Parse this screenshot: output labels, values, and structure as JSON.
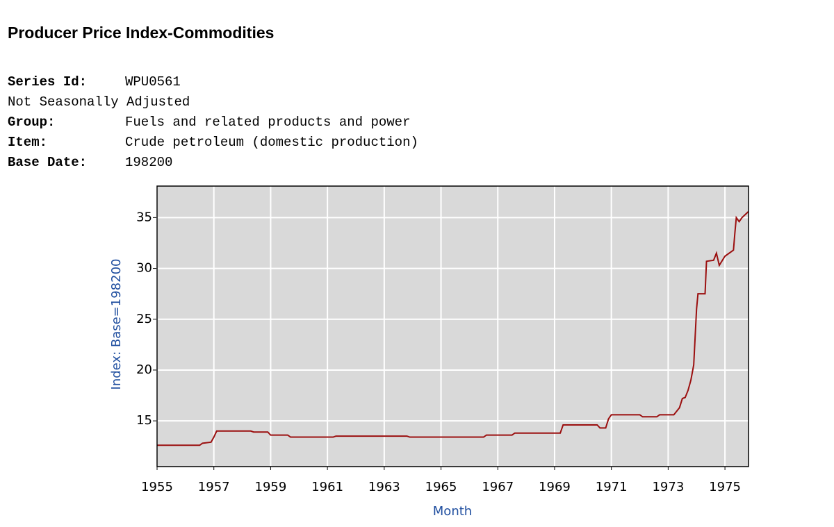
{
  "header": {
    "title": "Producer Price Index-Commodities",
    "series_id": {
      "label": "Series Id:",
      "value": "WPU0561"
    },
    "adjustment": "Not Seasonally Adjusted",
    "fields": [
      {
        "label": "Group:",
        "value": "Fuels and related products and power"
      },
      {
        "label": "Item:",
        "value": "Crude petroleum (domestic production)"
      },
      {
        "label": "Base Date:",
        "value": "198200"
      }
    ]
  },
  "chart_data": {
    "type": "line",
    "xlabel": "Month",
    "ylabel": "Index: Base=198200",
    "color": "#9b0f0f",
    "grid": true,
    "x": [
      1955.0,
      1956.5,
      1956.6,
      1956.9,
      1957.0,
      1957.1,
      1958.3,
      1958.4,
      1958.9,
      1959.0,
      1959.6,
      1959.7,
      1961.2,
      1961.3,
      1963.8,
      1963.9,
      1966.5,
      1966.6,
      1967.5,
      1967.6,
      1969.2,
      1969.3,
      1970.5,
      1970.6,
      1970.8,
      1970.9,
      1971.0,
      1972.0,
      1972.1,
      1972.6,
      1972.7,
      1973.2,
      1973.4,
      1973.5,
      1973.6,
      1973.7,
      1973.8,
      1973.9,
      1974.0,
      1974.05,
      1974.3,
      1974.35,
      1974.6,
      1974.7,
      1974.8,
      1975.0,
      1975.3,
      1975.35,
      1975.4,
      1975.5,
      1975.6,
      1975.83
    ],
    "values": [
      12.6,
      12.6,
      12.8,
      12.9,
      13.4,
      14.0,
      14.0,
      13.9,
      13.9,
      13.6,
      13.6,
      13.4,
      13.4,
      13.5,
      13.5,
      13.4,
      13.4,
      13.6,
      13.6,
      13.8,
      13.8,
      14.6,
      14.6,
      14.3,
      14.3,
      15.2,
      15.6,
      15.6,
      15.4,
      15.4,
      15.6,
      15.6,
      16.3,
      17.2,
      17.3,
      18.0,
      19.0,
      20.5,
      26.0,
      27.5,
      27.5,
      30.7,
      30.8,
      31.5,
      30.3,
      31.2,
      31.8,
      33.5,
      35.0,
      34.6,
      35.0,
      35.6
    ],
    "xlim": [
      1955,
      1975.83
    ],
    "ylim": [
      10.5,
      38.1
    ],
    "xticks": [
      1955,
      1957,
      1959,
      1961,
      1963,
      1965,
      1967,
      1969,
      1971,
      1973,
      1975
    ],
    "yticks": [
      15,
      20,
      25,
      30,
      35
    ]
  }
}
